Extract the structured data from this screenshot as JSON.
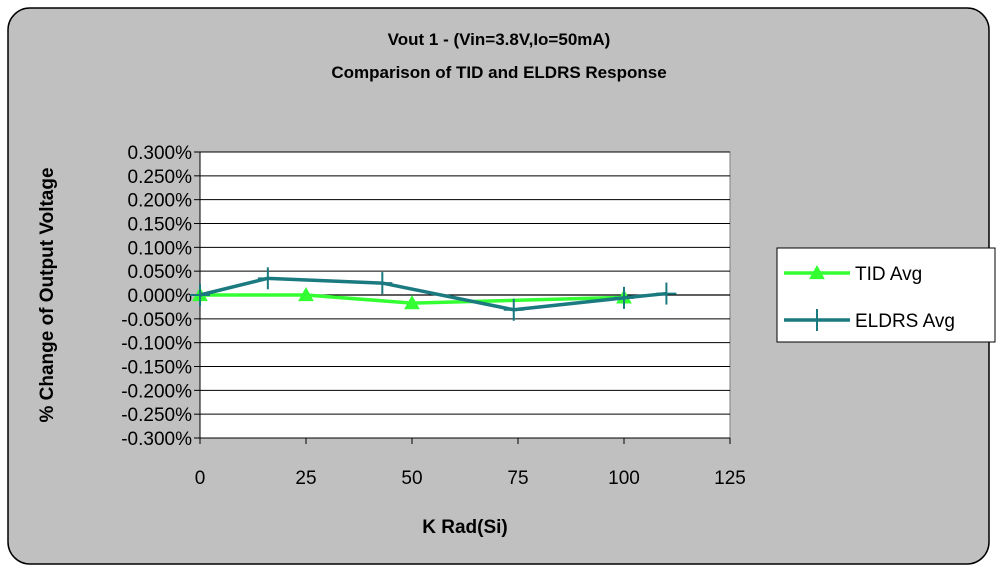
{
  "chart_data": {
    "type": "line",
    "title": [
      "Vout 1 - (Vin=3.8V,Io=50mA)",
      "Comparison of TID and ELDRS Response"
    ],
    "xlabel": "K Rad(Si)",
    "ylabel": "% Change of Output Voltage",
    "xlim": [
      0,
      125
    ],
    "ylim": [
      -0.3,
      0.3
    ],
    "x_ticks": [
      0,
      25,
      50,
      75,
      100,
      125
    ],
    "x_tick_labels": [
      "0",
      "25",
      "50",
      "75",
      "100",
      "125"
    ],
    "y_ticks": [
      0.3,
      0.25,
      0.2,
      0.15,
      0.1,
      0.05,
      0,
      -0.05,
      -0.1,
      -0.15,
      -0.2,
      -0.25,
      -0.3
    ],
    "y_tick_labels": [
      "0.300%",
      "0.250%",
      "0.200%",
      "0.150%",
      "0.100%",
      "0.050%",
      "0.000%",
      "-0.050%",
      "-0.100%",
      "-0.150%",
      "-0.200%",
      "-0.250%",
      "-0.300%"
    ],
    "grid": "horizontal",
    "legend_position": "right",
    "plot_background": "#ffffff",
    "chart_background": "#c0c0c0",
    "series": [
      {
        "name": "TID Avg",
        "color": "#33ff33",
        "marker": "triangle",
        "x": [
          0,
          25,
          50,
          100
        ],
        "y": [
          0.0,
          0.0,
          -0.017,
          -0.005
        ]
      },
      {
        "name": "ELDRS Avg",
        "color": "#1a7a80",
        "marker": "plus",
        "x": [
          0,
          16,
          43,
          74,
          100,
          110
        ],
        "y": [
          0.0,
          0.035,
          0.025,
          -0.031,
          -0.006,
          0.003
        ]
      }
    ]
  }
}
